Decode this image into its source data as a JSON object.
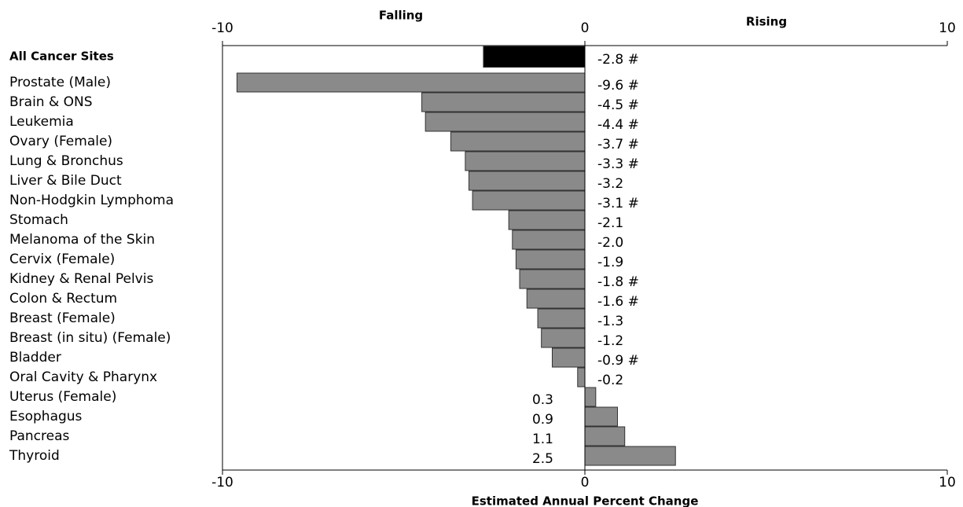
{
  "chart_data": {
    "type": "hbar",
    "left_heading": "Falling",
    "right_heading": "Rising",
    "x_label": "Estimated Annual Percent Change",
    "categories": [
      "All Cancer Sites",
      "Prostate (Male)",
      "Brain & ONS",
      "Leukemia",
      "Ovary (Female)",
      "Lung & Bronchus",
      "Liver & Bile Duct",
      "Non-Hodgkin Lymphoma",
      "Stomach",
      "Melanoma of the Skin",
      "Cervix (Female)",
      "Kidney & Renal Pelvis",
      "Colon & Rectum",
      "Breast (Female)",
      "Breast (in situ) (Female)",
      "Bladder",
      "Oral Cavity & Pharynx",
      "Uterus (Female)",
      "Esophagus",
      "Pancreas",
      "Thyroid"
    ],
    "values": [
      -2.8,
      -9.6,
      -4.5,
      -4.4,
      -3.7,
      -3.3,
      -3.2,
      -3.1,
      -2.1,
      -2.0,
      -1.9,
      -1.8,
      -1.6,
      -1.3,
      -1.2,
      -0.9,
      -0.2,
      0.3,
      0.9,
      1.1,
      2.5
    ],
    "value_labels": [
      "-2.8 #",
      "-9.6 #",
      "-4.5 #",
      "-4.4 #",
      "-3.7 #",
      "-3.3 #",
      "-3.2",
      "-3.1 #",
      "-2.1",
      "-2.0",
      "-1.9",
      "-1.8 #",
      "-1.6 #",
      "-1.3",
      "-1.2",
      "-0.9 #",
      "-0.2",
      "0.3",
      "0.9",
      "1.1",
      "2.5"
    ],
    "colors": [
      "#000000",
      "#8a8a8a",
      "#8a8a8a",
      "#8a8a8a",
      "#8a8a8a",
      "#8a8a8a",
      "#8a8a8a",
      "#8a8a8a",
      "#8a8a8a",
      "#8a8a8a",
      "#8a8a8a",
      "#8a8a8a",
      "#8a8a8a",
      "#8a8a8a",
      "#8a8a8a",
      "#8a8a8a",
      "#8a8a8a",
      "#8a8a8a",
      "#8a8a8a",
      "#8a8a8a",
      "#8a8a8a"
    ],
    "xlim": [
      -10,
      10
    ],
    "xticks": [
      -10,
      0,
      10
    ]
  }
}
